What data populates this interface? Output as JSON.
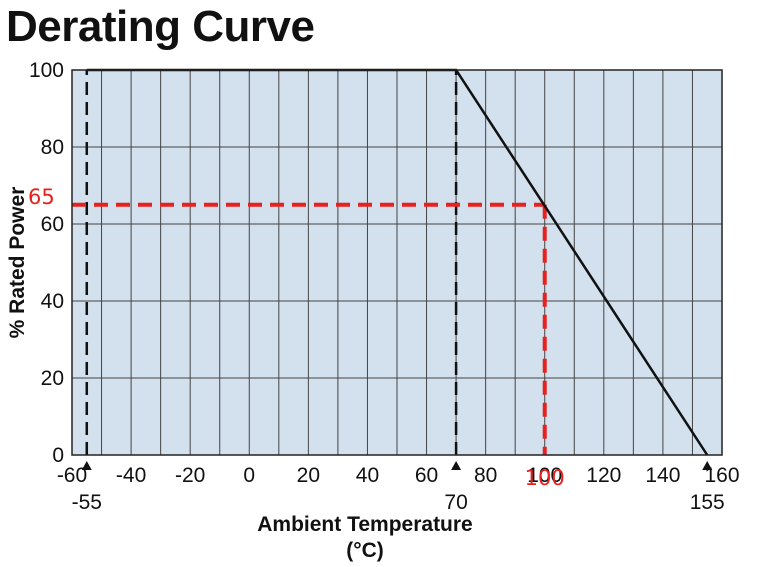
{
  "chart_data": {
    "type": "line",
    "title": "Derating Curve",
    "xlabel_line1": "Ambient Temperature",
    "xlabel_line2": "(°C)",
    "ylabel": "% Rated Power",
    "xlim": [
      -60,
      160
    ],
    "ylim": [
      0,
      100
    ],
    "x_ticks": [
      -60,
      -40,
      -20,
      0,
      20,
      40,
      60,
      80,
      100,
      120,
      140,
      160
    ],
    "y_ticks": [
      0,
      20,
      40,
      60,
      80,
      100
    ],
    "x_gridlines": [
      -60,
      -50,
      -40,
      -30,
      -20,
      -10,
      0,
      10,
      20,
      30,
      40,
      50,
      60,
      70,
      80,
      90,
      100,
      110,
      120,
      130,
      140,
      150,
      160
    ],
    "y_gridlines": [
      0,
      20,
      40,
      60,
      80,
      100
    ],
    "grid": true,
    "background_color": "#d3e0ed",
    "series": [
      {
        "x": [
          -55,
          70,
          155
        ],
        "y": [
          100,
          100,
          0
        ],
        "color": "#111111"
      }
    ],
    "markers": [
      {
        "x": -55,
        "label": "-55"
      },
      {
        "x": 70,
        "label": "70"
      },
      {
        "x": 155,
        "label": "155"
      }
    ],
    "guides_black": [
      {
        "x": -55,
        "y_from": 0,
        "y_to": 100
      },
      {
        "x": 70,
        "y_from": 0,
        "y_to": 100
      }
    ],
    "annotation_red": {
      "x": 100,
      "y": 65,
      "x_label": "100",
      "y_label": "65",
      "color": "#e8201e"
    }
  }
}
